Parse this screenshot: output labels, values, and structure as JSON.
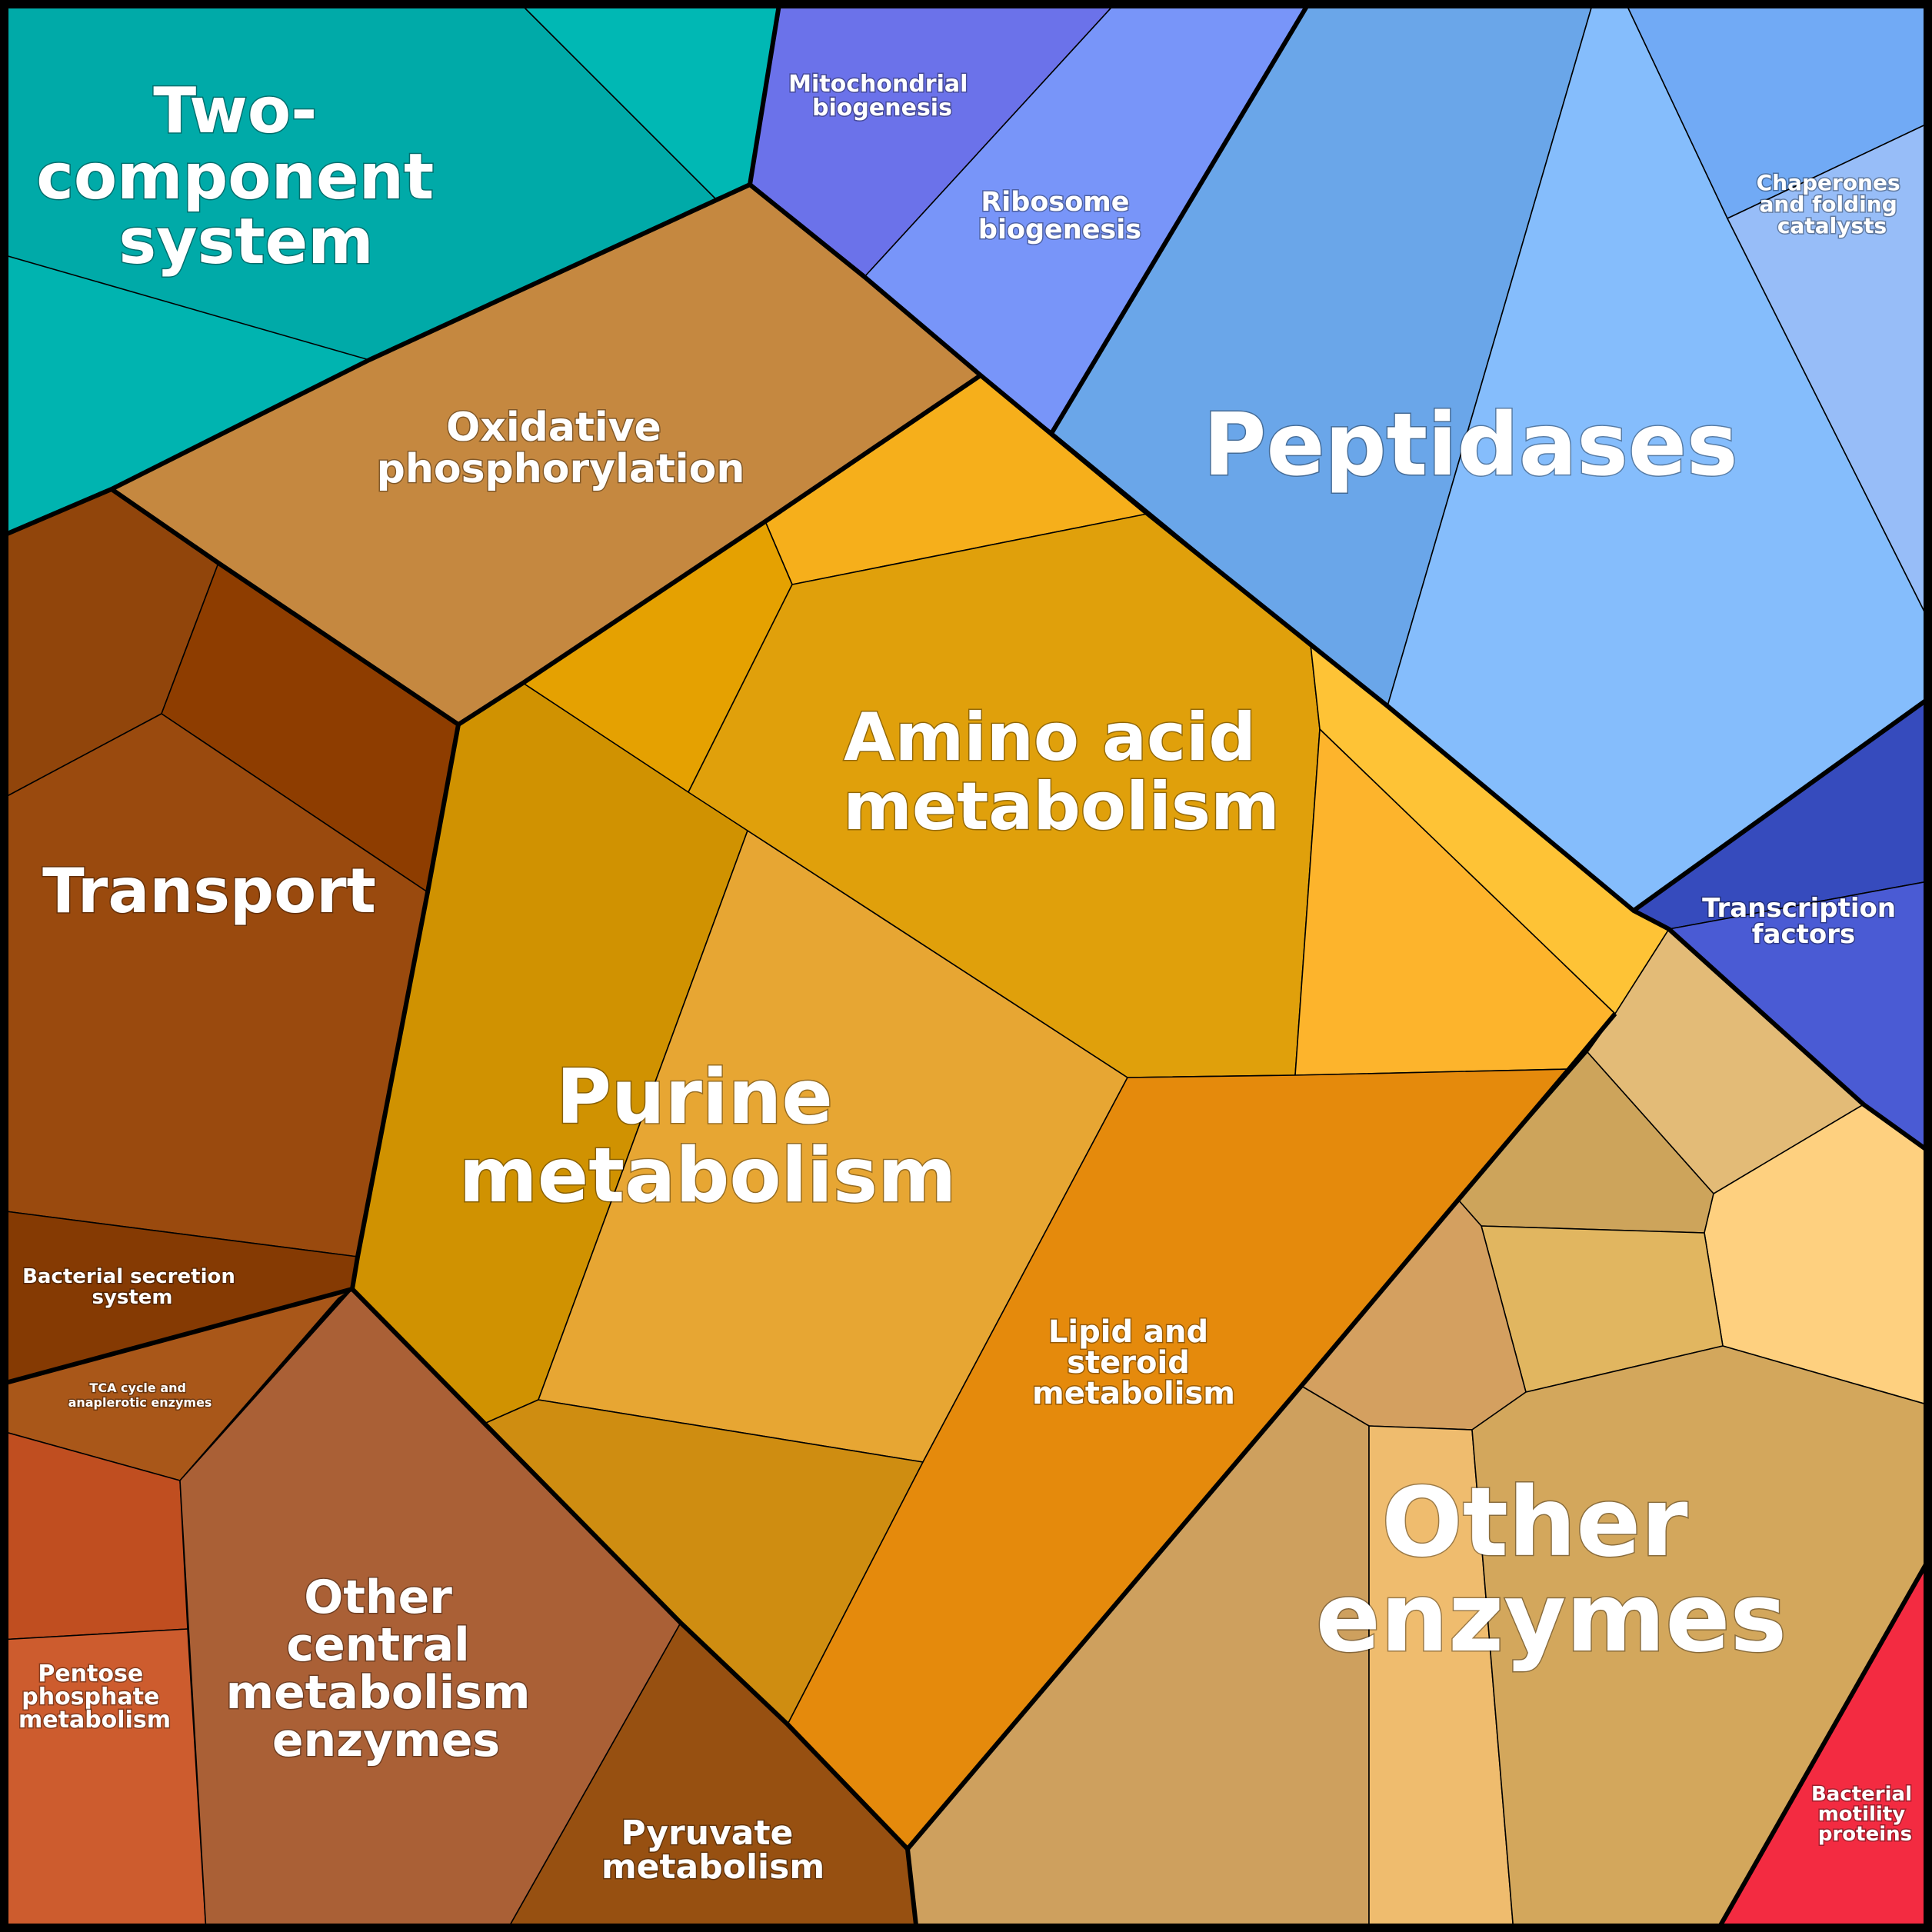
{
  "diagram": {
    "type": "voronoi-treemap",
    "categories": [
      {
        "name": "Two-component system",
        "lines": [
          "Two-",
          "component",
          "system"
        ],
        "color": "#00aaa8"
      },
      {
        "name": "Mitochondrial biogenesis",
        "lines": [
          "Mitochondrial",
          "biogenesis"
        ],
        "color": "#6b72ea"
      },
      {
        "name": "Ribosome biogenesis",
        "lines": [
          "Ribosome",
          "biogenesis"
        ],
        "color": "#7895f9"
      },
      {
        "name": "Peptidases",
        "lines": [
          "Peptidases"
        ],
        "color": "#6aa6e9"
      },
      {
        "name": "Chaperones and folding catalysts",
        "lines": [
          "Chaperones",
          "and folding",
          "catalysts"
        ],
        "color": "#97bdf8"
      },
      {
        "name": "Transcription factors",
        "lines": [
          "Transcription",
          "factors"
        ],
        "color": "#4a5bd4"
      },
      {
        "name": "Oxidative phosphorylation",
        "lines": [
          "Oxidative",
          "phosphorylation"
        ],
        "color": "#c58840"
      },
      {
        "name": "Transport",
        "lines": [
          "Transport"
        ],
        "color": "#9a4a0e"
      },
      {
        "name": "Bacterial secretion system",
        "lines": [
          "Bacterial secretion",
          "system"
        ],
        "color": "#853a03"
      },
      {
        "name": "TCA cycle and anaplerotic enzymes",
        "lines": [
          "TCA cycle and",
          "anaplerotic enzymes"
        ],
        "color": "#a95719"
      },
      {
        "name": "Pentose phosphate metabolism",
        "lines": [
          "Pentose",
          "phosphate",
          "metabolism"
        ],
        "color": "#cd5c2e"
      },
      {
        "name": "Other central metabolism enzymes",
        "lines": [
          "Other",
          "central",
          "metabolism",
          "enzymes"
        ],
        "color": "#aa6036"
      },
      {
        "name": "Pyruvate metabolism",
        "lines": [
          "Pyruvate",
          "metabolism"
        ],
        "color": "#975011"
      },
      {
        "name": "Amino acid metabolism",
        "lines": [
          "Amino acid",
          "metabolism"
        ],
        "color": "#e0a00b"
      },
      {
        "name": "Purine metabolism",
        "lines": [
          "Purine",
          "metabolism"
        ],
        "color": "#e7a633"
      },
      {
        "name": "Lipid and steroid metabolism",
        "lines": [
          "Lipid and",
          "steroid",
          "metabolism"
        ],
        "color": "#e58a0c"
      },
      {
        "name": "Other enzymes",
        "lines": [
          "Other",
          "enzymes"
        ],
        "color": "#cea05e"
      },
      {
        "name": "Bacterial motility proteins",
        "lines": [
          "Bacterial",
          "motility",
          "proteins"
        ],
        "color": "#f32b41"
      }
    ]
  }
}
